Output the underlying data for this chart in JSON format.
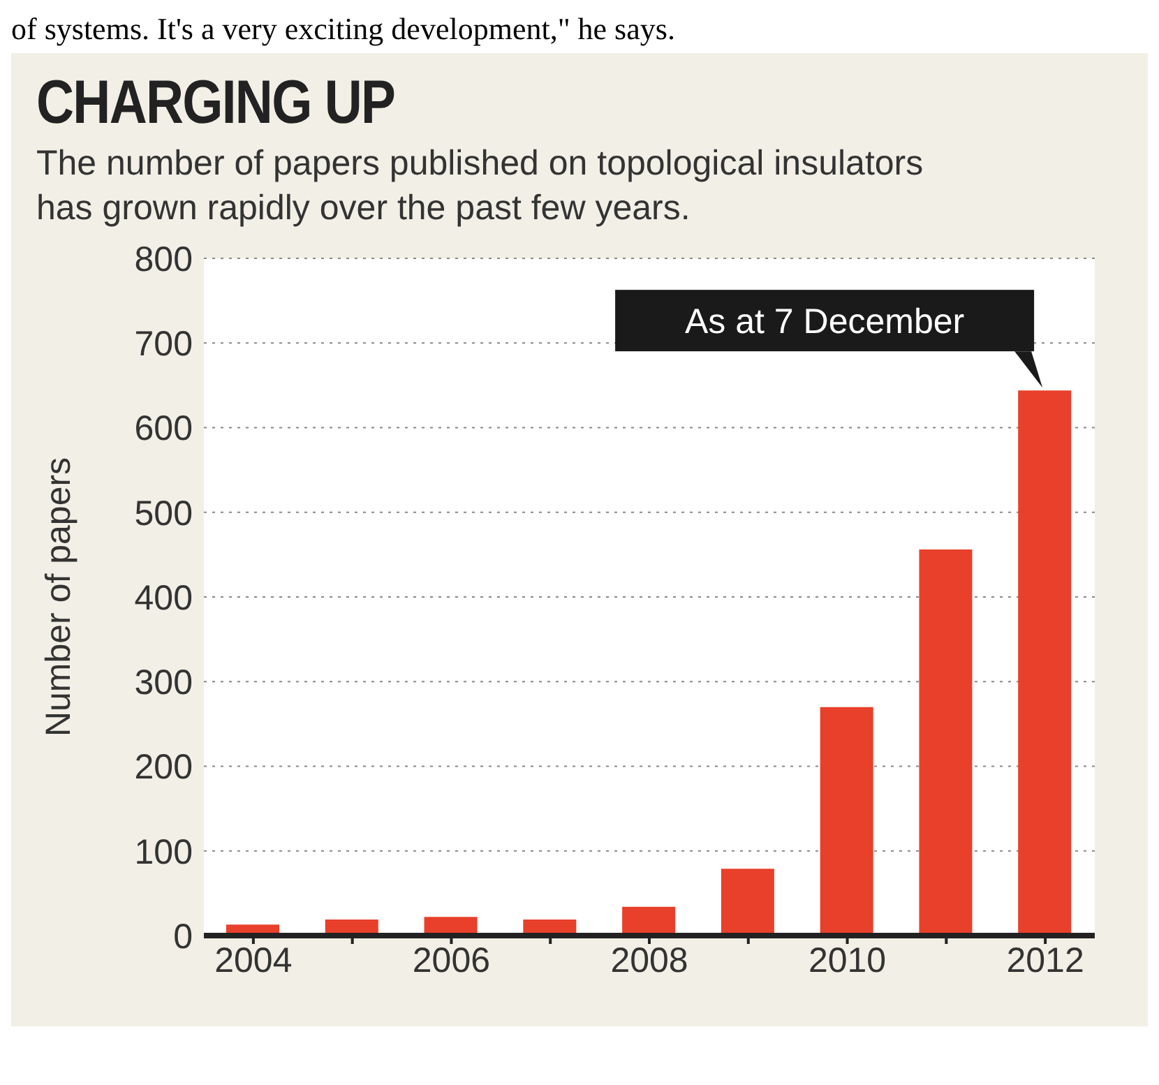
{
  "chart_data": {
    "type": "bar",
    "title": "CHARGING UP",
    "subtitle": "The number of papers published on topological insulators has grown rapidly over the past few years.",
    "ylabel": "Number of papers",
    "categories": [
      "2004",
      null,
      "2006",
      null,
      "2008",
      null,
      "2010",
      null,
      "2012"
    ],
    "values": [
      13,
      19,
      22,
      19,
      34,
      79,
      270,
      456,
      644
    ],
    "color": "#e8402b",
    "ylim": [
      0,
      800
    ],
    "yticks": [
      0,
      100,
      200,
      300,
      400,
      500,
      600,
      700,
      800
    ],
    "grid": "y",
    "annotations": [
      "of systems. It's a very exciting development,\" he says.",
      {
        "text": "As at 7 December",
        "x": "2012",
        "y": 644
      }
    ]
  }
}
